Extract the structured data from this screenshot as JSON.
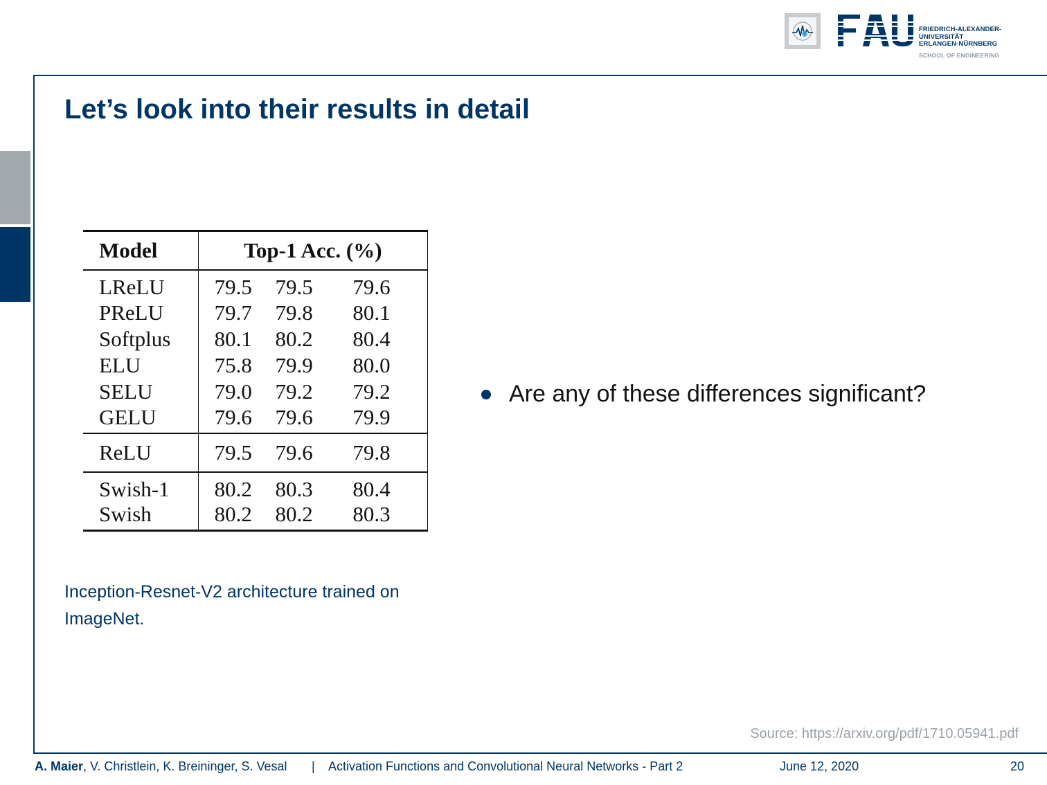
{
  "header": {
    "logo_fau_lines": [
      "FRIEDRICH-ALEXANDER-",
      "UNIVERSITÄT",
      "ERLANGEN-NÜRNBERG"
    ],
    "school": "SCHOOL OF ENGINEERING"
  },
  "slide": {
    "title": "Let’s look into their results in detail"
  },
  "table": {
    "headers": {
      "model": "Model",
      "accuracy": "Top-1 Acc. (%)"
    },
    "groups": [
      [
        {
          "model": "LReLU",
          "values": [
            "79.5",
            "79.5",
            "79.6"
          ]
        },
        {
          "model": "PReLU",
          "values": [
            "79.7",
            "79.8",
            "80.1"
          ]
        },
        {
          "model": "Softplus",
          "values": [
            "80.1",
            "80.2",
            "80.4"
          ]
        },
        {
          "model": "ELU",
          "values": [
            "75.8",
            "79.9",
            "80.0"
          ]
        },
        {
          "model": "SELU",
          "values": [
            "79.0",
            "79.2",
            "79.2"
          ]
        },
        {
          "model": "GELU",
          "values": [
            "79.6",
            "79.6",
            "79.9"
          ]
        }
      ],
      [
        {
          "model": "ReLU",
          "values": [
            "79.5",
            "79.6",
            "79.8"
          ]
        }
      ],
      [
        {
          "model": "Swish-1",
          "values": [
            "80.2",
            "80.3",
            "80.4"
          ]
        },
        {
          "model": "Swish",
          "values": [
            "80.2",
            "80.2",
            "80.3"
          ]
        }
      ]
    ]
  },
  "caption": "Inception-Resnet-V2 architecture trained on ImageNet.",
  "bullets": [
    "Are any of these differences significant?"
  ],
  "source": "Source: https://arxiv.org/pdf/1710.05941.pdf",
  "footer": {
    "lead_author": "A. Maier",
    "other_authors": ", V. Christlein, K. Breininger, S. Vesal",
    "separator": "|",
    "course": "Activation Functions and Convolutional Neural Networks - Part 2",
    "date": "June 12, 2020",
    "page": "20"
  }
}
